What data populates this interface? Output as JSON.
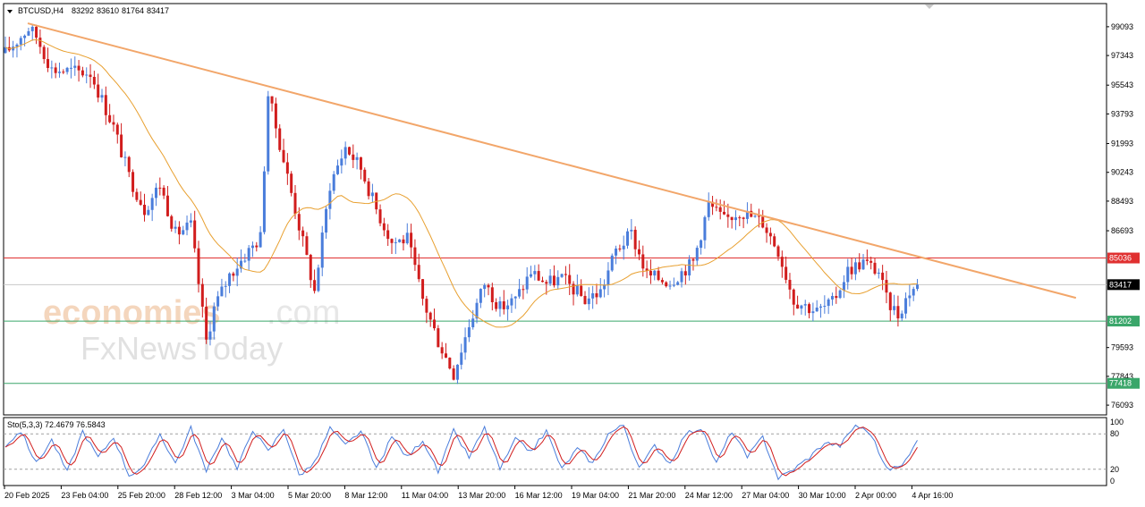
{
  "header": {
    "symbol": "BTCUSD,H4",
    "open": "83292",
    "high": "83610",
    "low": "81764",
    "close": "83417"
  },
  "watermark": {
    "part1": "economies",
    "part2": ".com",
    "part3": "FxNewsToday"
  },
  "stoch": {
    "label": "Sto(5,3,3) 72.4679 76.5843",
    "main": 72.4679,
    "signal": 76.5843,
    "levels": [
      80,
      20
    ],
    "axis_labels": [
      "100",
      "80",
      "20",
      "0"
    ]
  },
  "colors": {
    "bull": "#4a7ddb",
    "bear": "#d11d1d",
    "ma": "#e8a030",
    "trendline": "#f2a66a",
    "resistance": "#e03030",
    "support": "#3aa66a",
    "current": "#c8c8c8"
  },
  "chart_data": {
    "type": "candlestick",
    "y_ticks": [
      "99093",
      "97343",
      "95543",
      "93793",
      "91993",
      "90243",
      "88493",
      "86693",
      "83417",
      "79593",
      "77843",
      "76093"
    ],
    "y_range": [
      75500,
      100500
    ],
    "x_ticks": [
      "20 Feb 2025",
      "23 Feb 04:00",
      "25 Feb 20:00",
      "28 Feb 12:00",
      "3 Mar 04:00",
      "5 Mar 20:00",
      "8 Mar 12:00",
      "11 Mar 04:00",
      "13 Mar 20:00",
      "16 Mar 12:00",
      "19 Mar 04:00",
      "21 Mar 20:00",
      "24 Mar 12:00",
      "27 Mar 04:00",
      "30 Mar 10:00",
      "2 Apr 00:00",
      "4 Apr 16:00"
    ],
    "levels": [
      {
        "name": "resistance",
        "value": 85036,
        "label": "85036"
      },
      {
        "name": "current",
        "value": 83417,
        "label": "83417"
      },
      {
        "name": "support1",
        "value": 81202,
        "label": "81202"
      },
      {
        "name": "support2",
        "value": 77418,
        "label": "77418"
      }
    ],
    "trendline": {
      "from": {
        "bar": 0,
        "price": 99300
      },
      "to": {
        "bar": 240,
        "price": 83700
      }
    },
    "price_path": [
      [
        0,
        97500
      ],
      [
        6,
        99000
      ],
      [
        8,
        98500
      ],
      [
        12,
        96500
      ],
      [
        22,
        96300
      ],
      [
        28,
        93000
      ],
      [
        32,
        90000
      ],
      [
        36,
        88000
      ],
      [
        40,
        89500
      ],
      [
        44,
        86500
      ],
      [
        48,
        87000
      ],
      [
        52,
        80000
      ],
      [
        54,
        82000
      ],
      [
        58,
        84000
      ],
      [
        62,
        85200
      ],
      [
        66,
        86300
      ],
      [
        68,
        95000
      ],
      [
        72,
        91000
      ],
      [
        76,
        87000
      ],
      [
        80,
        83000
      ],
      [
        84,
        89500
      ],
      [
        88,
        91800
      ],
      [
        92,
        90500
      ],
      [
        96,
        88000
      ],
      [
        100,
        86000
      ],
      [
        104,
        86200
      ],
      [
        108,
        82500
      ],
      [
        112,
        80000
      ],
      [
        116,
        78000
      ],
      [
        120,
        81000
      ],
      [
        124,
        83500
      ],
      [
        128,
        82000
      ],
      [
        132,
        82500
      ],
      [
        136,
        84200
      ],
      [
        140,
        83500
      ],
      [
        144,
        83800
      ],
      [
        150,
        82500
      ],
      [
        154,
        83000
      ],
      [
        158,
        85500
      ],
      [
        162,
        86500
      ],
      [
        166,
        84000
      ],
      [
        172,
        83600
      ],
      [
        178,
        84800
      ],
      [
        182,
        88300
      ],
      [
        186,
        87300
      ],
      [
        190,
        87900
      ],
      [
        196,
        87200
      ],
      [
        200,
        85500
      ],
      [
        204,
        82500
      ],
      [
        210,
        81800
      ],
      [
        214,
        82300
      ],
      [
        218,
        84300
      ],
      [
        222,
        84800
      ],
      [
        226,
        84200
      ],
      [
        228,
        82500
      ],
      [
        231,
        81600
      ],
      [
        234,
        83000
      ],
      [
        236,
        83417
      ]
    ],
    "stoch_path": [
      [
        0,
        60
      ],
      [
        4,
        85
      ],
      [
        8,
        30
      ],
      [
        12,
        70
      ],
      [
        16,
        15
      ],
      [
        20,
        85
      ],
      [
        24,
        40
      ],
      [
        28,
        75
      ],
      [
        32,
        10
      ],
      [
        36,
        25
      ],
      [
        40,
        80
      ],
      [
        44,
        30
      ],
      [
        48,
        90
      ],
      [
        52,
        15
      ],
      [
        56,
        75
      ],
      [
        60,
        20
      ],
      [
        64,
        88
      ],
      [
        68,
        50
      ],
      [
        72,
        90
      ],
      [
        76,
        10
      ],
      [
        80,
        30
      ],
      [
        84,
        90
      ],
      [
        88,
        60
      ],
      [
        92,
        85
      ],
      [
        96,
        20
      ],
      [
        100,
        75
      ],
      [
        104,
        40
      ],
      [
        108,
        70
      ],
      [
        112,
        15
      ],
      [
        116,
        85
      ],
      [
        120,
        40
      ],
      [
        124,
        90
      ],
      [
        128,
        20
      ],
      [
        132,
        70
      ],
      [
        136,
        50
      ],
      [
        140,
        85
      ],
      [
        144,
        20
      ],
      [
        148,
        55
      ],
      [
        152,
        30
      ],
      [
        156,
        80
      ],
      [
        160,
        95
      ],
      [
        164,
        20
      ],
      [
        168,
        60
      ],
      [
        172,
        30
      ],
      [
        176,
        80
      ],
      [
        180,
        90
      ],
      [
        184,
        30
      ],
      [
        188,
        85
      ],
      [
        192,
        40
      ],
      [
        196,
        75
      ],
      [
        200,
        5
      ],
      [
        204,
        20
      ],
      [
        208,
        40
      ],
      [
        212,
        65
      ],
      [
        216,
        60
      ],
      [
        220,
        95
      ],
      [
        224,
        80
      ],
      [
        228,
        20
      ],
      [
        232,
        25
      ],
      [
        236,
        72
      ]
    ]
  }
}
